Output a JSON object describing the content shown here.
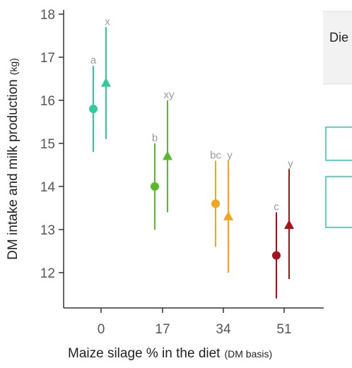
{
  "chart_data": {
    "type": "scatter",
    "ylabel": "DM intake and milk production",
    "ylabel_unit": "(kg)",
    "xlabel": "Maize silage % in the diet",
    "xlabel_unit": "(DM basis)",
    "x_ticks": [
      "0",
      "17",
      "34",
      "51"
    ],
    "y_ticks": [
      "12",
      "13",
      "14",
      "15",
      "16",
      "17",
      "18"
    ],
    "ylim": [
      11.3,
      18.1
    ],
    "grid": false,
    "legend_box": {
      "title_text": "Die"
    },
    "series": [
      {
        "marker": "circle",
        "points": [
          {
            "x": "0",
            "y": 15.8,
            "low": 14.8,
            "high": 16.8,
            "label": "a",
            "color": "#2ecc9a"
          },
          {
            "x": "17",
            "y": 14.0,
            "low": 13.0,
            "high": 15.0,
            "label": "b",
            "color": "#5ab82e"
          },
          {
            "x": "34",
            "y": 13.6,
            "low": 12.6,
            "high": 14.6,
            "label": "bc",
            "color": "#f0a51b"
          },
          {
            "x": "51",
            "y": 12.4,
            "low": 11.4,
            "high": 13.4,
            "label": "c",
            "color": "#a8101a"
          }
        ]
      },
      {
        "marker": "triangle",
        "points": [
          {
            "x": "0",
            "y": 16.4,
            "low": 15.1,
            "high": 17.7,
            "label": "x",
            "color": "#2ecc9a"
          },
          {
            "x": "17",
            "y": 14.7,
            "low": 13.4,
            "high": 16.0,
            "label": "xy",
            "color": "#5ab82e"
          },
          {
            "x": "34",
            "y": 13.3,
            "low": 12.0,
            "high": 14.6,
            "label": "y",
            "color": "#f0a51b"
          },
          {
            "x": "51",
            "y": 13.1,
            "low": 11.85,
            "high": 14.4,
            "label": "y",
            "color": "#a8101a"
          }
        ]
      }
    ]
  }
}
